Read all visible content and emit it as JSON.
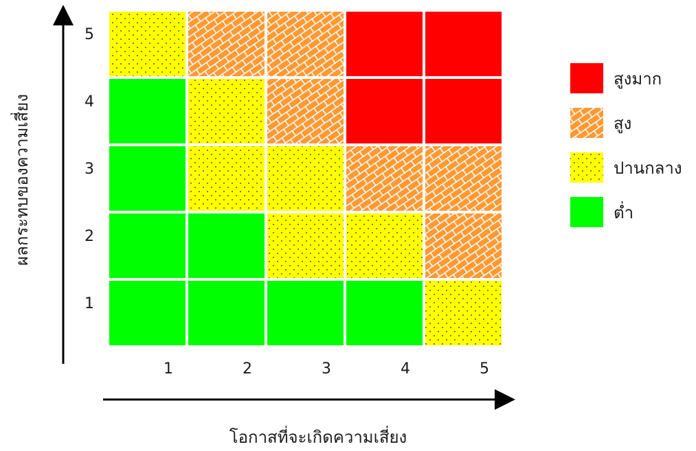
{
  "chart_data": {
    "type": "heatmap",
    "title": "",
    "xlabel": "โอกาสที่จะเกิดความเสี่ยง",
    "ylabel": "ผลกระทบของความเสี่ยง",
    "x_ticks": [
      "1",
      "2",
      "3",
      "4",
      "5"
    ],
    "y_ticks": [
      "1",
      "2",
      "3",
      "4",
      "5"
    ],
    "levels": [
      {
        "key": "very_high",
        "label": "สูงมาก",
        "color": "#ff0000",
        "pattern": "solid"
      },
      {
        "key": "high",
        "label": "สูง",
        "color": "#ff9933",
        "pattern": "brick"
      },
      {
        "key": "medium",
        "label": "ปานกลาง",
        "color": "#ffff00",
        "pattern": "dots"
      },
      {
        "key": "low",
        "label": "ต่ำ",
        "color": "#00ff00",
        "pattern": "solid"
      }
    ],
    "legend_position": "right",
    "grid": [
      [
        5,
        1,
        "medium"
      ],
      [
        5,
        2,
        "high"
      ],
      [
        5,
        3,
        "high"
      ],
      [
        5,
        4,
        "very_high"
      ],
      [
        5,
        5,
        "very_high"
      ],
      [
        4,
        1,
        "low"
      ],
      [
        4,
        2,
        "medium"
      ],
      [
        4,
        3,
        "high"
      ],
      [
        4,
        4,
        "very_high"
      ],
      [
        4,
        5,
        "very_high"
      ],
      [
        3,
        1,
        "low"
      ],
      [
        3,
        2,
        "medium"
      ],
      [
        3,
        3,
        "medium"
      ],
      [
        3,
        4,
        "high"
      ],
      [
        3,
        5,
        "high"
      ],
      [
        2,
        1,
        "low"
      ],
      [
        2,
        2,
        "low"
      ],
      [
        2,
        3,
        "medium"
      ],
      [
        2,
        4,
        "medium"
      ],
      [
        2,
        5,
        "high"
      ],
      [
        1,
        1,
        "low"
      ],
      [
        1,
        2,
        "low"
      ],
      [
        1,
        3,
        "low"
      ],
      [
        1,
        4,
        "low"
      ],
      [
        1,
        5,
        "medium"
      ]
    ]
  }
}
